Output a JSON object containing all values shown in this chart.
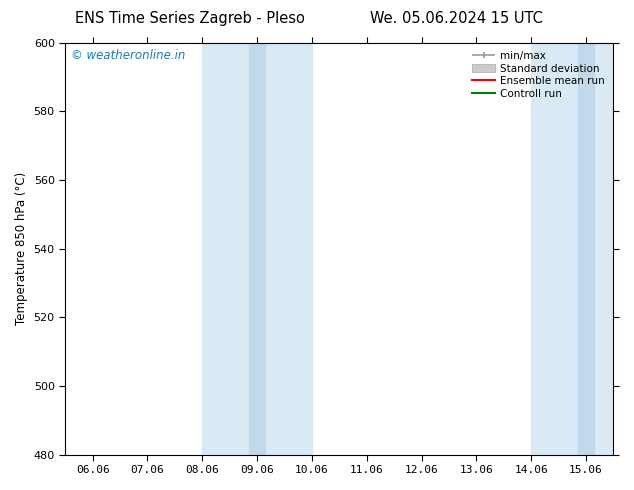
{
  "title_left": "ENS Time Series Zagreb - Pleso",
  "title_right": "We. 05.06.2024 15 UTC",
  "ylabel": "Temperature 850 hPa (°C)",
  "ylim": [
    480,
    600
  ],
  "yticks": [
    480,
    500,
    520,
    540,
    560,
    580,
    600
  ],
  "xtick_labels": [
    "06.06",
    "07.06",
    "08.06",
    "09.06",
    "10.06",
    "11.06",
    "12.06",
    "13.06",
    "14.06",
    "15.06"
  ],
  "watermark_text": "© weatheronline.in",
  "watermark_color": "#1a7abd",
  "legend_labels": [
    "min/max",
    "Standard deviation",
    "Ensemble mean run",
    "Controll run"
  ],
  "legend_colors": [
    "#aaaaaa",
    "#cccccc",
    "red",
    "green"
  ],
  "bg_color": "#ffffff",
  "band1_light": "#daeaf5",
  "band1_dark": "#c2d9ec",
  "band2_light": "#daeaf5",
  "band2_dark": "#c2d9ec",
  "border_color": "#000000",
  "tick_color": "#000000",
  "font_size_title": 10.5,
  "font_size_ticks": 8,
  "font_size_ylabel": 8.5,
  "font_size_legend": 7.5,
  "font_size_watermark": 8.5
}
